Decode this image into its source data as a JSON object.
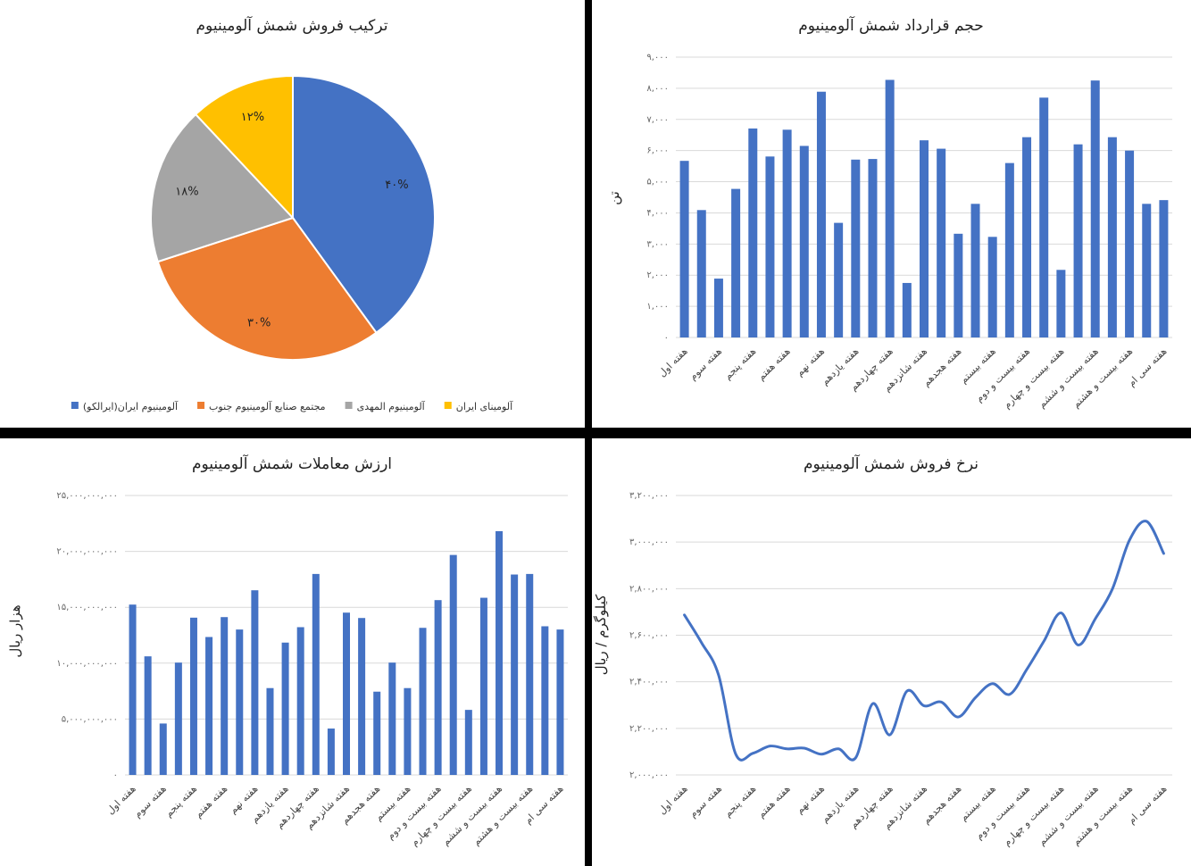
{
  "chart_data": [
    {
      "id": "composition",
      "type": "pie",
      "title": "ترکیب فروش شمش آلومینیوم",
      "slices": [
        {
          "name": "آلومینیوم ایران(ایرالکو)",
          "value": 40,
          "label": "۴۰%",
          "color": "#4472C4"
        },
        {
          "name": "مجتمع صنایع آلومینیوم جنوب",
          "value": 30,
          "label": "۳۰%",
          "color": "#ED7D31"
        },
        {
          "name": "آلومینیوم المهدی",
          "value": 18,
          "label": "۱۸%",
          "color": "#A5A5A5"
        },
        {
          "name": "آلومینای ایران",
          "value": 12,
          "label": "۱۲%",
          "color": "#FFC000"
        }
      ],
      "legend": "bottom"
    },
    {
      "id": "volume",
      "type": "bar",
      "title": "حجم قرارداد شمش آلومینیوم",
      "ylabel": "تن",
      "xlabel": "",
      "ylim": [
        0,
        9000
      ],
      "grid": true,
      "color": "#4472C4",
      "yticks": [
        0,
        1000,
        2000,
        3000,
        4000,
        5000,
        6000,
        7000,
        8000,
        9000
      ],
      "ytick_labels": [
        "۰",
        "۱,۰۰۰",
        "۲,۰۰۰",
        "۳,۰۰۰",
        "۴,۰۰۰",
        "۵,۰۰۰",
        "۶,۰۰۰",
        "۷,۰۰۰",
        "۸,۰۰۰",
        "۹,۰۰۰"
      ],
      "categories": [
        "هفته اول",
        "",
        "هفته سوم",
        "",
        "هفته پنجم",
        "",
        "هفته هفتم",
        "",
        "هفته نهم",
        "",
        "هفته یازدهم",
        "",
        "هفته چهاردهم",
        "",
        "هفته شانزدهم",
        "",
        "هفته هجدهم",
        "",
        "هفته بیستم",
        "",
        "هفته بیست و دوم",
        "",
        "هفته بیست و چهارم",
        "",
        "هفته بیست و ششم",
        "",
        "هفته بیست و هشتم",
        "",
        "هفته سی ام"
      ],
      "values": [
        5670,
        4090,
        1890,
        4770,
        6710,
        5810,
        6670,
        6150,
        7890,
        3680,
        5710,
        5730,
        8270,
        1750,
        6330,
        6060,
        3330,
        4290,
        3230,
        5600,
        6430,
        7700,
        2170,
        6200,
        8250,
        6430,
        6000,
        4290,
        4410
      ]
    },
    {
      "id": "value",
      "type": "bar",
      "title": "ارزش معاملات شمش آلومینیوم",
      "ylabel": "هزار ریال",
      "xlabel": "",
      "ylim": [
        0,
        25000000000
      ],
      "grid": true,
      "color": "#4472C4",
      "yticks": [
        0,
        5000000000,
        10000000000,
        15000000000,
        20000000000,
        25000000000
      ],
      "ytick_labels": [
        "۰",
        "۵,۰۰۰,۰۰۰,۰۰۰",
        "۱۰,۰۰۰,۰۰۰,۰۰۰",
        "۱۵,۰۰۰,۰۰۰,۰۰۰",
        "۲۰,۰۰۰,۰۰۰,۰۰۰",
        "۲۵,۰۰۰,۰۰۰,۰۰۰"
      ],
      "categories": [
        "هفته اول",
        "",
        "هفته سوم",
        "",
        "هفته پنجم",
        "",
        "هفته هفتم",
        "",
        "هفته نهم",
        "",
        "هفته یازدهم",
        "",
        "هفته چهاردهم",
        "",
        "هفته شانزدهم",
        "",
        "هفته هجدهم",
        "",
        "هفته بیستم",
        "",
        "هفته بیست و دوم",
        "",
        "هفته بیست و چهارم",
        "",
        "هفته بیست و ششم",
        "",
        "هفته بیست و هشتم",
        "",
        "هفته سی ام"
      ],
      "values": [
        15240000000,
        10610000000,
        4600000000,
        10050000000,
        14070000000,
        12340000000,
        14120000000,
        13010000000,
        16520000000,
        7770000000,
        11840000000,
        13220000000,
        17980000000,
        4150000000,
        14520000000,
        14040000000,
        7450000000,
        10050000000,
        7770000000,
        13160000000,
        15640000000,
        19680000000,
        5820000000,
        15850000000,
        21810000000,
        17930000000,
        17980000000,
        13300000000,
        13010000000
      ]
    },
    {
      "id": "price",
      "type": "line",
      "title": "نرخ فروش شمش آلومینیوم",
      "ylabel": "کیلوگرم / ریال",
      "xlabel": "",
      "ylim": [
        2000000,
        3200000
      ],
      "grid": true,
      "color": "#4472C4",
      "smooth": true,
      "yticks": [
        2000000,
        2200000,
        2400000,
        2600000,
        2800000,
        3000000,
        3200000
      ],
      "ytick_labels": [
        "۲,۰۰۰,۰۰۰",
        "۲,۲۰۰,۰۰۰",
        "۲,۴۰۰,۰۰۰",
        "۲,۶۰۰,۰۰۰",
        "۲,۸۰۰,۰۰۰",
        "۳,۰۰۰,۰۰۰",
        "۳,۲۰۰,۰۰۰"
      ],
      "categories": [
        "هفته اول",
        "",
        "هفته سوم",
        "",
        "هفته پنجم",
        "",
        "هفته هفتم",
        "",
        "هفته نهم",
        "",
        "هفته یازدهم",
        "",
        "هفته چهاردهم",
        "",
        "هفته شانزدهم",
        "",
        "هفته هجدهم",
        "",
        "هفته بیستم",
        "",
        "هفته بیست و دوم",
        "",
        "هفته بیست و چهارم",
        "",
        "هفته بیست و ششم",
        "",
        "هفته بیست و هشتم",
        "",
        "هفته سی ام"
      ],
      "values": [
        2687000,
        2568000,
        2428000,
        2089000,
        2093000,
        2124000,
        2112000,
        2115000,
        2089000,
        2112000,
        2073000,
        2306000,
        2172000,
        2360000,
        2297000,
        2313000,
        2249000,
        2332000,
        2392000,
        2346000,
        2453000,
        2574000,
        2696000,
        2558000,
        2670000,
        2798000,
        3008000,
        3089000,
        2951000
      ]
    }
  ]
}
